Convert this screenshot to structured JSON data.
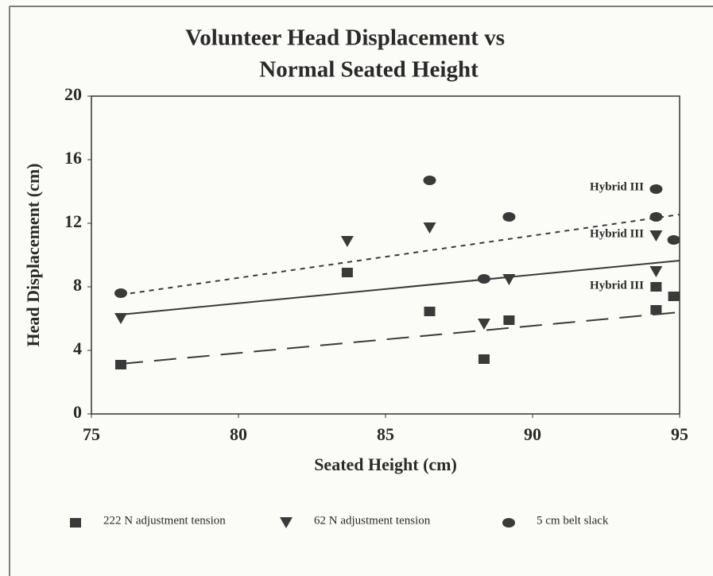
{
  "chart_data": {
    "type": "scatter",
    "title": [
      "Volunteer Head Displacement vs",
      "Normal Seated Height"
    ],
    "x_label": "Seated Height (cm)",
    "y_label": "Head Displacement (cm)",
    "xlim": [
      75,
      95
    ],
    "xticks": [
      75,
      80,
      85,
      90,
      95
    ],
    "ylim": [
      0,
      20
    ],
    "yticks": [
      0,
      4,
      8,
      12,
      16,
      20
    ],
    "grid": false,
    "series": [
      {
        "name": "222 N adjustment tension",
        "marker": "square",
        "color": "#3a3a3a",
        "trend_dash": "28,14",
        "x": [
          76,
          83.7,
          86.5,
          88.35,
          89.2,
          94.2,
          94.2,
          94.8
        ],
        "values": [
          3.1,
          8.9,
          6.45,
          3.45,
          5.9,
          8.0,
          6.55,
          7.4
        ],
        "trend_x": [
          76,
          95
        ],
        "trend_y": [
          3.15,
          6.4
        ]
      },
      {
        "name": "62 N adjustment tension",
        "marker": "triangle",
        "color": "#3a3a3a",
        "trend_dash": "none",
        "x": [
          76,
          83.7,
          86.5,
          88.35,
          89.2,
          94.2,
          94.2
        ],
        "values": [
          6.0,
          10.85,
          11.7,
          5.65,
          8.45,
          11.2,
          8.95
        ],
        "trend_x": [
          76,
          95
        ],
        "trend_y": [
          6.25,
          9.65
        ]
      },
      {
        "name": "5 cm belt slack",
        "marker": "circle",
        "color": "#3a3a3a",
        "trend_dash": "6,6",
        "x": [
          76,
          86.5,
          89.2,
          88.35,
          94.2,
          94.2,
          94.8
        ],
        "values": [
          7.6,
          14.7,
          12.4,
          8.5,
          14.15,
          12.4,
          10.95
        ],
        "trend_x": [
          76,
          95
        ],
        "trend_y": [
          7.5,
          12.55
        ]
      }
    ],
    "annotations": [
      "Hybrid III",
      "Hybrid III",
      "Hybrid III"
    ]
  }
}
